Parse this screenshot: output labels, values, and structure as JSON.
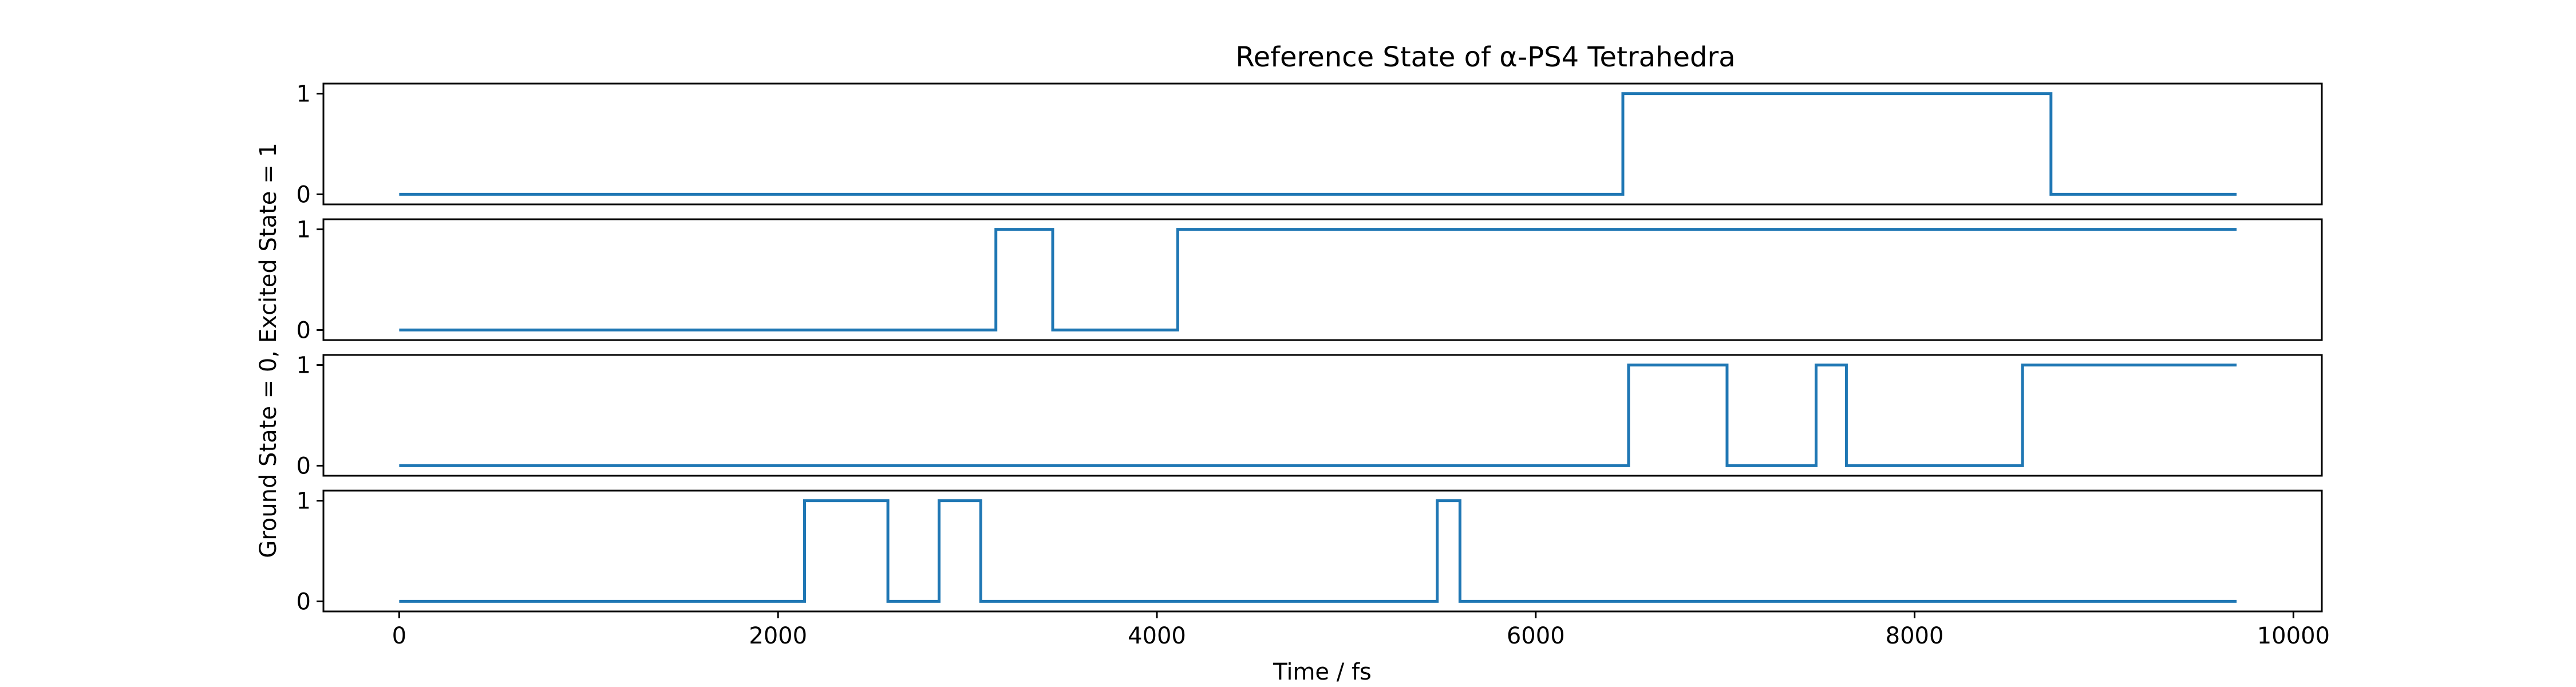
{
  "chart_data": {
    "type": "line",
    "title": "Reference State of α-PS4 Tetrahedra",
    "xlabel": "Time / fs",
    "ylabel": "Ground State = 0, Excited State = 1",
    "xlim": [
      -400,
      10150
    ],
    "ylim": [
      -0.1,
      1.1
    ],
    "xticks": [
      0,
      2000,
      4000,
      6000,
      8000,
      10000
    ],
    "xtick_labels": [
      "0",
      "2000",
      "4000",
      "6000",
      "8000",
      "10000"
    ],
    "yticks": [
      0,
      1
    ],
    "ytick_labels": [
      "0",
      "1"
    ],
    "line_color": "#1f77b4",
    "panels": [
      {
        "name": "panel-1",
        "x": [
          0,
          6460,
          6460,
          8720,
          8720,
          9700
        ],
        "y": [
          0,
          0,
          1,
          1,
          0,
          0
        ]
      },
      {
        "name": "panel-2",
        "x": [
          0,
          3150,
          3150,
          3450,
          3450,
          4110,
          4110,
          9700
        ],
        "y": [
          0,
          0,
          1,
          1,
          0,
          0,
          1,
          1
        ]
      },
      {
        "name": "panel-3",
        "x": [
          0,
          6490,
          6490,
          7010,
          7010,
          7480,
          7480,
          7640,
          7640,
          8570,
          8570,
          9700
        ],
        "y": [
          0,
          0,
          1,
          1,
          0,
          0,
          1,
          1,
          0,
          0,
          1,
          1
        ]
      },
      {
        "name": "panel-4",
        "x": [
          0,
          2140,
          2140,
          2580,
          2580,
          2850,
          2850,
          3070,
          3070,
          5480,
          5480,
          5600,
          5600,
          9700
        ],
        "y": [
          0,
          0,
          1,
          1,
          0,
          0,
          1,
          1,
          0,
          0,
          1,
          1,
          0,
          0
        ]
      }
    ]
  }
}
